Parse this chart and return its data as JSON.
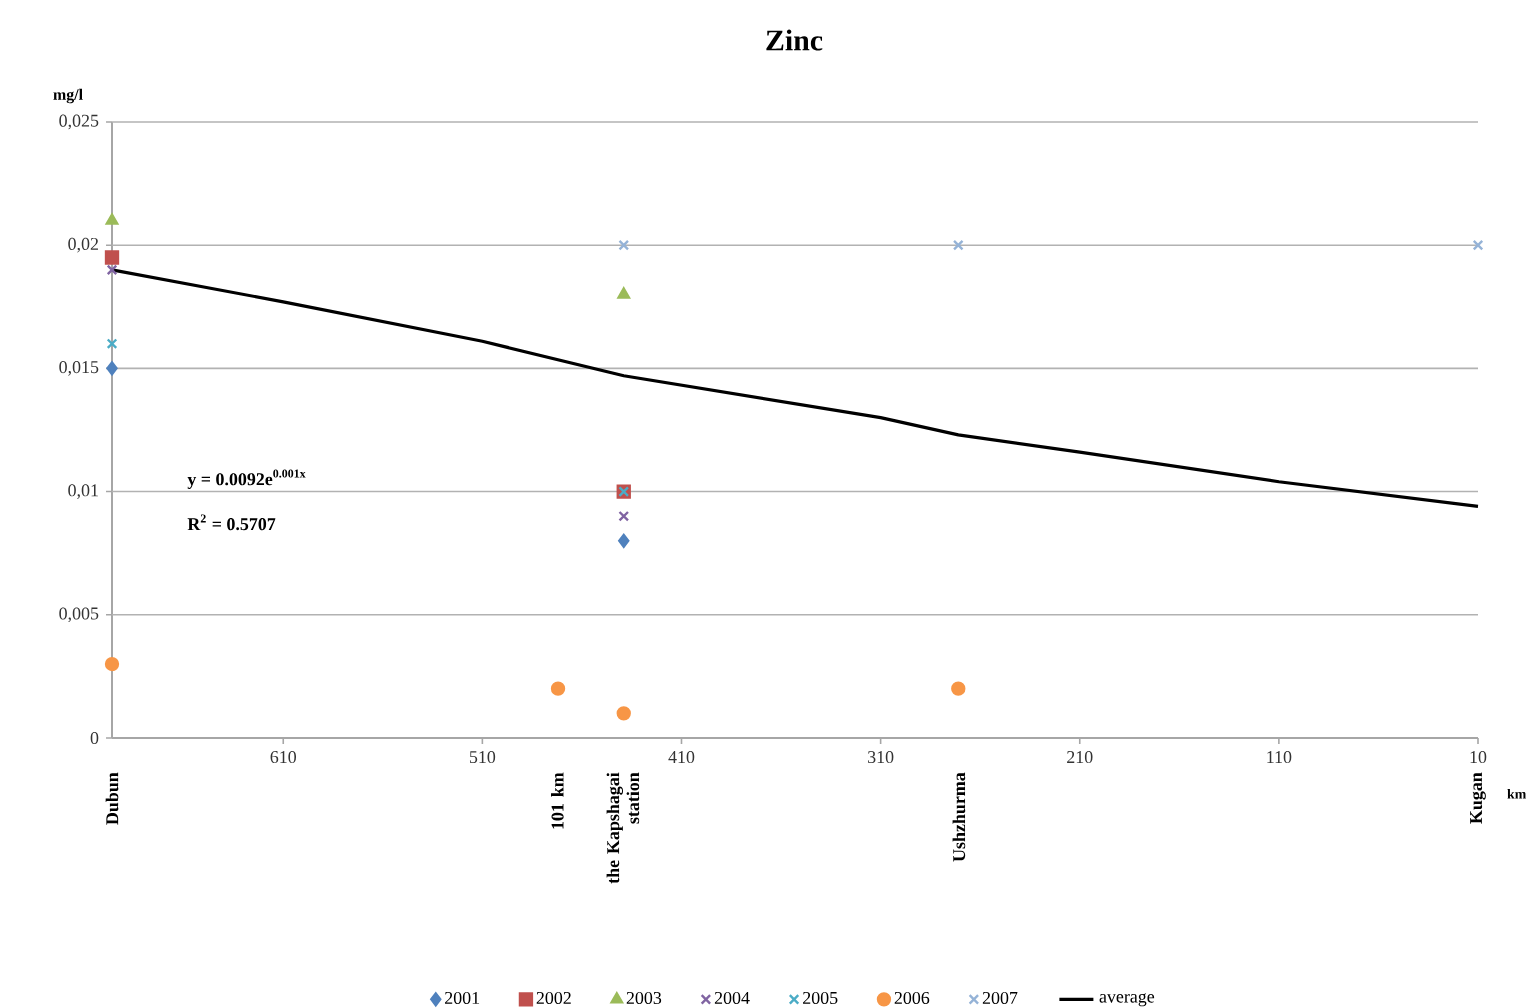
{
  "chart_data": {
    "type": "scatter",
    "title": "Zinc",
    "ylabel": "mg/l",
    "xlabel": "km",
    "xlim": [
      696,
      10
    ],
    "xticks": [
      610,
      510,
      410,
      310,
      210,
      110,
      10
    ],
    "ylim": [
      0,
      0.025
    ],
    "yticks": [
      {
        "value": 0,
        "label": "0"
      },
      {
        "value": 0.005,
        "label": "0,005"
      },
      {
        "value": 0.01,
        "label": "0,01"
      },
      {
        "value": 0.015,
        "label": "0,015"
      },
      {
        "value": 0.02,
        "label": "0,02"
      },
      {
        "value": 0.025,
        "label": "0,025"
      }
    ],
    "grid": "y",
    "legend": "bottom",
    "series": [
      {
        "name": "2001",
        "color": "#4f81bd",
        "marker": "diamond",
        "x": [
          696,
          439
        ],
        "values": [
          0.015,
          0.008
        ]
      },
      {
        "name": "2002",
        "color": "#c0504d",
        "marker": "square",
        "x": [
          696,
          439
        ],
        "values": [
          0.0195,
          0.01
        ]
      },
      {
        "name": "2003",
        "color": "#9bbb59",
        "marker": "triangle",
        "x": [
          696,
          439
        ],
        "values": [
          0.021,
          0.018
        ]
      },
      {
        "name": "2004",
        "color": "#8064a2",
        "marker": "cross",
        "x": [
          696,
          439
        ],
        "values": [
          0.019,
          0.009
        ]
      },
      {
        "name": "2005",
        "color": "#4bacc6",
        "marker": "cross",
        "x": [
          696,
          439
        ],
        "values": [
          0.016,
          0.01
        ]
      },
      {
        "name": "2006",
        "color": "#f79646",
        "marker": "circle",
        "x": [
          696,
          472,
          439,
          271
        ],
        "values": [
          0.003,
          0.002,
          0.001,
          0.002
        ]
      },
      {
        "name": "2007",
        "color": "#95b3d7",
        "marker": "cross",
        "x": [
          439,
          271,
          10
        ],
        "values": [
          0.02,
          0.02,
          0.02
        ]
      },
      {
        "name": "average",
        "type": "line",
        "color": "#000000",
        "marker": "none",
        "x": [
          696,
          610,
          510,
          439,
          310,
          271,
          210,
          110,
          10
        ],
        "values": [
          0.019,
          0.0177,
          0.0161,
          0.0147,
          0.013,
          0.0123,
          0.0116,
          0.0104,
          0.0094
        ]
      }
    ],
    "annotations": [
      "y = 0.0092e$^{0.001x}$",
      "R$^{2}$ = 0.5707",
      "Dubun",
      "101 km",
      "the Kapshagai station",
      "Ushzhurma",
      "Kugan"
    ]
  }
}
